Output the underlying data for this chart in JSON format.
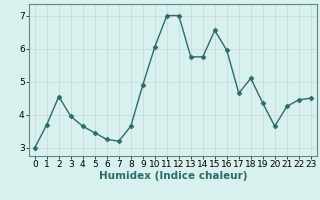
{
  "x": [
    0,
    1,
    2,
    3,
    4,
    5,
    6,
    7,
    8,
    9,
    10,
    11,
    12,
    13,
    14,
    15,
    16,
    17,
    18,
    19,
    20,
    21,
    22,
    23
  ],
  "y": [
    3.0,
    3.7,
    4.55,
    3.95,
    3.65,
    3.45,
    3.25,
    3.2,
    3.65,
    4.9,
    6.05,
    7.0,
    7.0,
    5.75,
    5.75,
    6.55,
    5.95,
    4.65,
    5.1,
    4.35,
    3.65,
    4.25,
    4.45,
    4.5
  ],
  "line_color": "#2d6b6b",
  "marker": "D",
  "marker_size": 2.5,
  "bg_color": "#d8f0ee",
  "grid_color": "#c8dedd",
  "xlabel": "Humidex (Indice chaleur)",
  "ylim": [
    2.75,
    7.35
  ],
  "xlim": [
    -0.5,
    23.5
  ],
  "yticks": [
    3,
    4,
    5,
    6,
    7
  ],
  "xticks": [
    0,
    1,
    2,
    3,
    4,
    5,
    6,
    7,
    8,
    9,
    10,
    11,
    12,
    13,
    14,
    15,
    16,
    17,
    18,
    19,
    20,
    21,
    22,
    23
  ],
  "xlabel_fontsize": 7.5,
  "tick_fontsize": 6.5,
  "line_width": 1.0,
  "spine_color": "#5a8a8a"
}
